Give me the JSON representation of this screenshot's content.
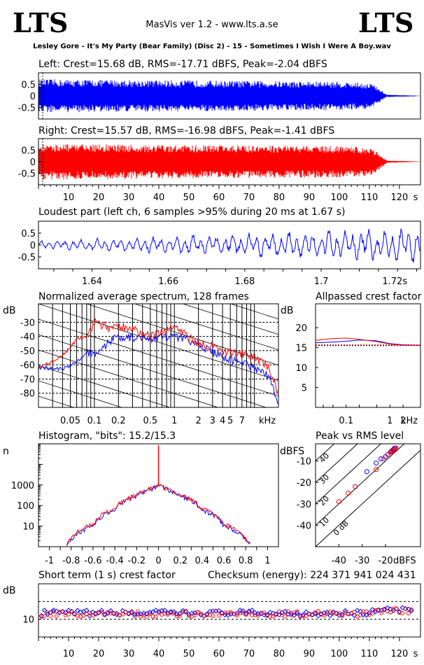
{
  "header": {
    "logo_left": "LTS",
    "logo_right": "LTS",
    "app_title": "MasVis ver 1.2 - www.lts.a.se",
    "file_title": "Lesley Gore - It's My Party (Bear Family) (Disc 2) - 15 - Sometimes I Wish I Were A Boy.wav"
  },
  "colors": {
    "left": "#0000ff",
    "right": "#ff0000",
    "grid": "#000000"
  },
  "chart_data": [
    {
      "type": "line",
      "id": "left_waveform",
      "title": "Left: Crest=15.68 dB, RMS=-17.71 dBFS, Peak=-2.04 dBFS",
      "ytick_labels": [
        "0.5",
        "0",
        "-0.5"
      ],
      "ylim": [
        -1,
        1
      ],
      "xlim": [
        0,
        127
      ],
      "series": [
        {
          "values": [
            0.72,
            0.7,
            0.62,
            0.55,
            0.05,
            0.01
          ]
        }
      ],
      "x": [
        0,
        20,
        100,
        111,
        116,
        127
      ]
    },
    {
      "type": "line",
      "id": "right_waveform",
      "title": "Right: Crest=15.57 dB, RMS=-16.98 dBFS, Peak=-1.41 dBFS",
      "ytick_labels": [
        "0.5",
        "0",
        "-0.5"
      ],
      "xtick_labels": [
        "10",
        "20",
        "30",
        "40",
        "50",
        "60",
        "70",
        "80",
        "90",
        "100",
        "110",
        "120",
        "s"
      ],
      "ylim": [
        -1,
        1
      ],
      "xlim": [
        0,
        127
      ],
      "series": [
        {
          "values": [
            0.78,
            0.75,
            0.68,
            0.6,
            0.05,
            0.01
          ]
        }
      ],
      "x": [
        0,
        20,
        100,
        111,
        116,
        127
      ]
    },
    {
      "type": "line",
      "id": "loudest_part",
      "title": "Loudest part (left  ch, 6 samples >95% during 20 ms at 1.67 s)",
      "ytick_labels": [
        "0.5",
        "0",
        "-0.5"
      ],
      "xtick_labels": [
        "1.64",
        "1.66",
        "1.68",
        "1.7",
        "1.72s"
      ],
      "ylim": [
        -1,
        1
      ],
      "xlim": [
        1.626,
        1.726
      ]
    },
    {
      "type": "line",
      "id": "spectrum",
      "title": "Normalized average spectrum, 128 frames",
      "ylabel": "dB",
      "xlabel": "kHz",
      "ytick_labels": [
        "-30",
        "-40",
        "-50",
        "-60",
        "-70",
        "-80"
      ],
      "xtick_labels": [
        "0.05",
        "0.1",
        "0.2",
        "0.5",
        "1",
        "2",
        "3",
        "4",
        "5",
        "7"
      ],
      "ylim": [
        -90,
        -17
      ],
      "xlim": [
        0.02,
        20
      ],
      "x": [
        0.02,
        0.04,
        0.06,
        0.08,
        0.1,
        0.15,
        0.2,
        0.3,
        0.5,
        0.7,
        1,
        1.5,
        2,
        3,
        5,
        7,
        10,
        15,
        20
      ],
      "series": [
        {
          "values": [
            -62,
            -63,
            -58,
            -52,
            -52,
            -44,
            -40,
            -41,
            -42,
            -41,
            -40,
            -43,
            -46,
            -51,
            -57,
            -58,
            -62,
            -68,
            -88
          ]
        },
        {
          "values": [
            -62,
            -53,
            -42,
            -40,
            -30,
            -34,
            -33,
            -35,
            -40,
            -37,
            -32,
            -41,
            -45,
            -47,
            -52,
            -52,
            -55,
            -62,
            -82
          ]
        }
      ]
    },
    {
      "type": "line",
      "id": "allpassed_crest",
      "title": "Allpassed crest factor",
      "ylabel": "dB",
      "xlabel": "kHz",
      "ytick_labels": [
        "20",
        "15",
        "10",
        "5"
      ],
      "xtick_labels": [
        "0.1",
        "1",
        "2"
      ],
      "ylim": [
        0,
        26
      ],
      "xlim": [
        0.02,
        5
      ],
      "x": [
        0.02,
        0.05,
        0.1,
        0.2,
        0.5,
        1,
        2,
        5
      ],
      "series": [
        {
          "values": [
            16.2,
            16.4,
            16.6,
            16.9,
            16.7,
            16.0,
            15.7,
            15.6
          ]
        },
        {
          "values": [
            16.8,
            17.3,
            17.4,
            17.1,
            16.5,
            15.9,
            15.6,
            15.6
          ]
        }
      ],
      "reference": 15.6
    },
    {
      "type": "line",
      "id": "histogram",
      "title": "Histogram, \"bits\": 15.2/15.3",
      "ylabel": "n",
      "ytick_labels": [
        "1000",
        "100",
        "10"
      ],
      "xtick_labels": [
        "-1",
        "-0.8",
        "-0.6",
        "-0.4",
        "-0.2",
        "0",
        "0.2",
        "0.4",
        "0.6",
        "0.8",
        "1"
      ],
      "xlim": [
        -1.1,
        1.1
      ],
      "ylim": [
        1,
        100000
      ],
      "x": [
        -0.84,
        -0.8,
        -0.6,
        -0.4,
        -0.2,
        -0.05,
        0,
        0.05,
        0.2,
        0.4,
        0.6,
        0.8,
        0.84
      ],
      "series": [
        {
          "values": [
            1.5,
            2,
            10,
            60,
            300,
            700,
            1000,
            700,
            300,
            60,
            10,
            2,
            1.5
          ]
        },
        {
          "values": [
            1.5,
            2.5,
            12,
            70,
            320,
            720,
            1000,
            720,
            320,
            70,
            12,
            2.5,
            1.5
          ]
        }
      ]
    },
    {
      "type": "scatter",
      "id": "peak_vs_rms",
      "title": "Peak vs RMS level",
      "ylabel": "dBFS",
      "xlabel": "dBFS",
      "ytick_labels": [
        "-10",
        "-20",
        "-30",
        "-40"
      ],
      "xtick_labels": [
        "-40",
        "-30",
        "-20"
      ],
      "annotations": [
        "40",
        "30",
        "20",
        "10",
        "0 dB"
      ],
      "xlim": [
        -50,
        -5
      ],
      "ylim": [
        -50,
        -2
      ],
      "series": [
        {
          "x": [
            -28,
            -24,
            -22,
            -20,
            -19,
            -18,
            -17.5,
            -17,
            -16.5,
            -16
          ],
          "y": [
            -15,
            -11,
            -9,
            -8,
            -7,
            -6,
            -5.5,
            -5,
            -4.5,
            -4
          ]
        },
        {
          "x": [
            -40,
            -36,
            -33,
            -24,
            -21,
            -19,
            -18,
            -17,
            -16.5,
            -16,
            -15.5
          ],
          "y": [
            -29,
            -25,
            -22,
            -14,
            -9,
            -7,
            -6,
            -5.5,
            -5,
            -4.5,
            -4
          ]
        }
      ]
    },
    {
      "type": "scatter",
      "id": "short_term_crest",
      "title": "Short term (1 s) crest factor",
      "checksum": "Checksum (energy):   224 371 941 024 431",
      "ylabel": "dB",
      "ytick_labels": [
        "10"
      ],
      "xtick_labels": [
        "10",
        "20",
        "30",
        "40",
        "50",
        "60",
        "70",
        "80",
        "90",
        "100",
        "110",
        "120",
        "s"
      ],
      "xlim": [
        0,
        127
      ],
      "ylim": [
        0,
        30
      ],
      "reference_lines": [
        20,
        10
      ]
    }
  ]
}
